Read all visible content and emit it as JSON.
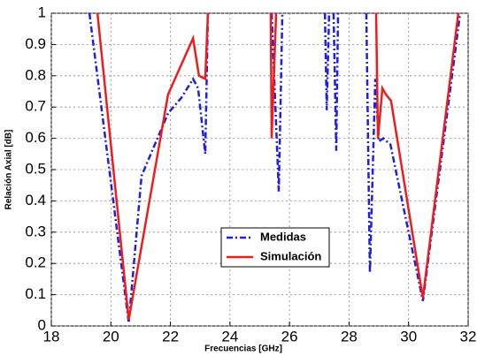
{
  "chart_data": {
    "type": "line",
    "x_label": "Frecuencias  [GHz]",
    "y_label": "Relación Axial [dB]",
    "xlim": [
      18,
      32
    ],
    "xticks": [
      18,
      20,
      22,
      24,
      26,
      28,
      30,
      32
    ],
    "ylim": [
      0,
      1
    ],
    "yticks": [
      0,
      0.1,
      0.2,
      0.3,
      0.4,
      0.5,
      0.6,
      0.7,
      0.8,
      0.9,
      1
    ],
    "grid": true,
    "series": [
      {
        "name": "Medidas",
        "color": "#1f1fe0",
        "dash": "dashdot",
        "x": [
          19.28,
          20.6,
          21.03,
          21.92,
          22.37,
          22.76,
          22.93,
          23.17,
          23.26,
          null,
          25.4,
          25.64,
          25.76,
          null,
          27.19,
          27.25,
          27.33,
          null,
          27.48,
          27.57,
          27.63,
          null,
          28.58,
          28.7,
          28.88,
          29.0,
          29.15,
          29.39,
          30.48,
          31.73
        ],
        "values": [
          1,
          0.01,
          0.48,
          0.68,
          0.73,
          0.79,
          0.76,
          0.55,
          1,
          null,
          1,
          0.43,
          1,
          null,
          1,
          0.69,
          1,
          null,
          1,
          0.56,
          1,
          null,
          1,
          0.17,
          0.79,
          0.59,
          0.6,
          0.58,
          0.08,
          1
        ]
      },
      {
        "name": "Simulación",
        "color": "#ee1c1c",
        "dash": "solid",
        "x": [
          19.55,
          20.6,
          21.92,
          22.76,
          22.96,
          23.17,
          23.26,
          null,
          25.37,
          25.4,
          25.55,
          null,
          28.91,
          28.97,
          29.12,
          29.24,
          29.41,
          30.48,
          31.67
        ],
        "values": [
          1,
          0.02,
          0.74,
          0.92,
          0.8,
          0.79,
          1,
          null,
          1,
          0.6,
          1,
          null,
          1,
          0.6,
          0.76,
          0.74,
          0.72,
          0.09,
          1
        ]
      }
    ]
  }
}
